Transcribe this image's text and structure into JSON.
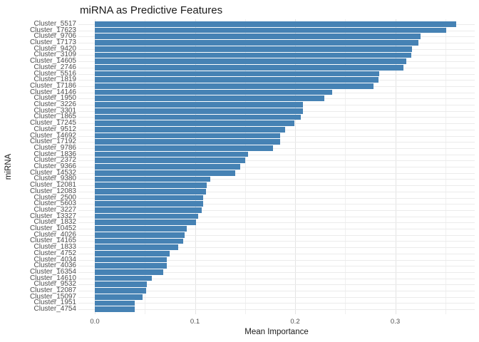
{
  "title": "miRNA as Predictive Features",
  "chart_data": {
    "type": "bar",
    "orientation": "horizontal",
    "title": "miRNA as Predictive Features",
    "xlabel": "Mean Importance",
    "ylabel": "miRNA",
    "xlim": [
      0,
      0.38
    ],
    "x_ticks": [
      0.0,
      0.1,
      0.2,
      0.3
    ],
    "x_tick_labels": [
      "0.0",
      "0.1",
      "0.2",
      "0.3"
    ],
    "x_minor_ticks": [
      0.05,
      0.15,
      0.25,
      0.35
    ],
    "grid": true,
    "legend": "none",
    "bar_color": "#4682B4",
    "major_grid_color": "#e4e4e4",
    "minor_grid_color": "#f0f0f0",
    "row_grid_color": "#ebebeb",
    "tick_label_color": "#4d4d4d",
    "categories": [
      "Cluster_5517",
      "Cluster_17623",
      "Cluster_9706",
      "Cluster_17173",
      "Cluster_9420",
      "Cluster_3109",
      "Cluster_14605",
      "Cluster_2746",
      "Cluster_5516",
      "Cluster_1819",
      "Cluster_17186",
      "Cluster_14146",
      "Cluster_1950",
      "Cluster_3226",
      "Cluster_3301",
      "Cluster_1865",
      "Cluster_17245",
      "Cluster_9512",
      "Cluster_14692",
      "Cluster_17192",
      "Cluster_9786",
      "Cluster_1836",
      "Cluster_2372",
      "Cluster_9366",
      "Cluster_14532",
      "Cluster_9380",
      "Cluster_12081",
      "Cluster_12083",
      "Cluster_2500",
      "Cluster_5603",
      "Cluster_3227",
      "Cluster_13327",
      "Cluster_1832",
      "Cluster_10452",
      "Cluster_4026",
      "Cluster_14165",
      "Cluster_1833",
      "Cluster_4752",
      "Cluster_4034",
      "Cluster_4036",
      "Cluster_16354",
      "Cluster_14610",
      "Cluster_9532",
      "Cluster_12087",
      "Cluster_15097",
      "Cluster_1951",
      "Cluster_4754"
    ],
    "values": [
      0.361,
      0.351,
      0.325,
      0.323,
      0.317,
      0.316,
      0.311,
      0.308,
      0.284,
      0.283,
      0.278,
      0.237,
      0.229,
      0.208,
      0.208,
      0.206,
      0.199,
      0.19,
      0.185,
      0.185,
      0.178,
      0.153,
      0.15,
      0.145,
      0.14,
      0.115,
      0.112,
      0.111,
      0.108,
      0.108,
      0.107,
      0.103,
      0.101,
      0.092,
      0.09,
      0.088,
      0.083,
      0.075,
      0.072,
      0.072,
      0.068,
      0.057,
      0.052,
      0.051,
      0.048,
      0.04,
      0.04
    ]
  }
}
